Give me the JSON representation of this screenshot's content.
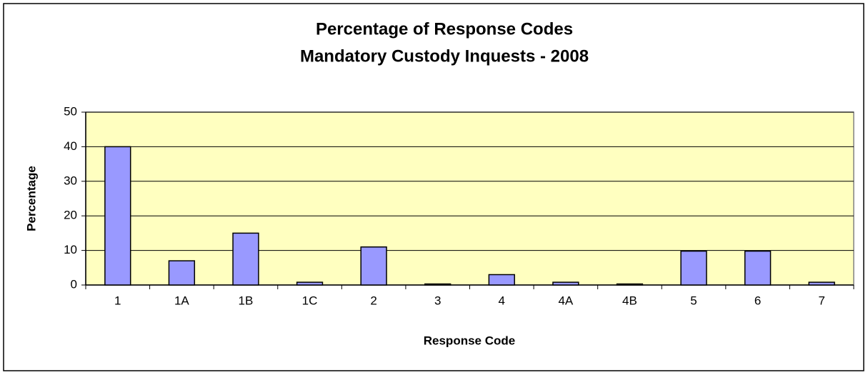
{
  "chart_data": {
    "type": "bar",
    "title": [
      "Percentage of Response Codes",
      "Mandatory Custody Inquests - 2008"
    ],
    "x_label": "Response Code",
    "y_label": "Percentage",
    "categories": [
      "1",
      "1A",
      "1B",
      "1C",
      "2",
      "3",
      "4",
      "4A",
      "4B",
      "5",
      "6",
      "7"
    ],
    "values": [
      40,
      7,
      15,
      0.8,
      11,
      0.3,
      3,
      0.8,
      0.3,
      9.8,
      9.8,
      0.8
    ],
    "color": "#9999ff",
    "ylim": [
      0,
      50
    ],
    "yticks": [
      0,
      10,
      20,
      30,
      40,
      50
    ],
    "grid": true
  }
}
